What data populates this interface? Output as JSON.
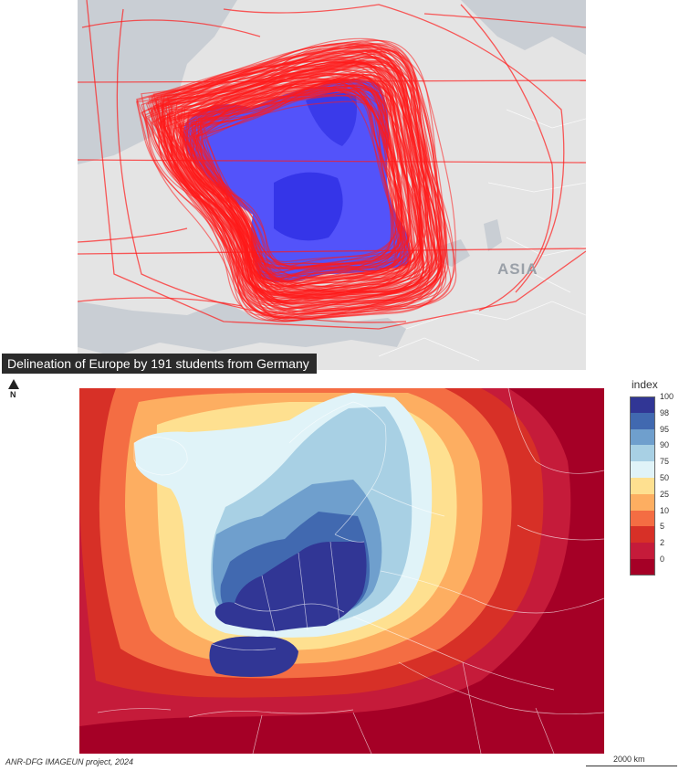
{
  "top_map": {
    "continent_label": "ASIA"
  },
  "title": "Delineation of Europe by 191 students from Germany",
  "north_arrow": {
    "letter": "N"
  },
  "legend": {
    "title": "index",
    "classes": [
      {
        "label": "100",
        "color": "#313695"
      },
      {
        "label": "98",
        "color": "#4169b0"
      },
      {
        "label": "95",
        "color": "#6f9fcd"
      },
      {
        "label": "90",
        "color": "#a8d0e4"
      },
      {
        "label": "75",
        "color": "#e0f3f8"
      },
      {
        "label": "50",
        "color": "#fee090"
      },
      {
        "label": "25",
        "color": "#fdae61"
      },
      {
        "label": "10",
        "color": "#f46d43"
      },
      {
        "label": "5",
        "color": "#d73027"
      },
      {
        "label": "2",
        "color": "#c51b3a"
      },
      {
        "label": "0",
        "color": "#a50026"
      }
    ]
  },
  "credit": "ANR-DFG IMAGEUN project, 2024",
  "scale_bar": {
    "label": "2000 km"
  },
  "colors": {
    "route_red": "#ff1a1a",
    "fill_blue": "#3333ff",
    "basemap_land": "#e4e4e4",
    "basemap_water": "#c9ced4"
  }
}
